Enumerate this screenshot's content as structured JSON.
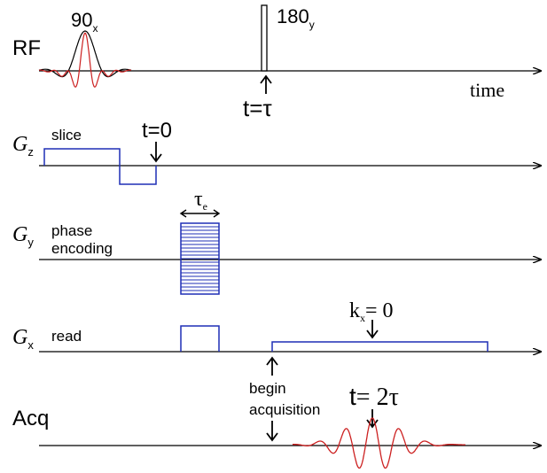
{
  "labels": {
    "rf": "RF",
    "pulse_90": "90",
    "pulse_90_sub": "x",
    "pulse_180": "180",
    "pulse_180_sub": "y",
    "time": "time",
    "t_tau": "t=τ",
    "gz": "G",
    "gz_sub": "z",
    "slice": "slice",
    "t0": "t=0",
    "gy": "G",
    "gy_sub": "y",
    "phase_line1": "phase",
    "phase_line2": "encoding",
    "tau_e": "τ",
    "tau_e_sub": "e",
    "gx": "G",
    "gx_sub": "x",
    "read": "read",
    "kx": "k",
    "kx_sub": "x",
    "kx_eq": "= 0",
    "begin_line1": "begin",
    "begin_line2": "acquisition",
    "t2tau_t": "t",
    "t2tau_eq": "= 2τ",
    "acq": "Acq"
  },
  "colors": {
    "axis": "#000000",
    "gradient": "#1f2fb5",
    "signal": "#cc2020",
    "rf_black": "#000000"
  }
}
